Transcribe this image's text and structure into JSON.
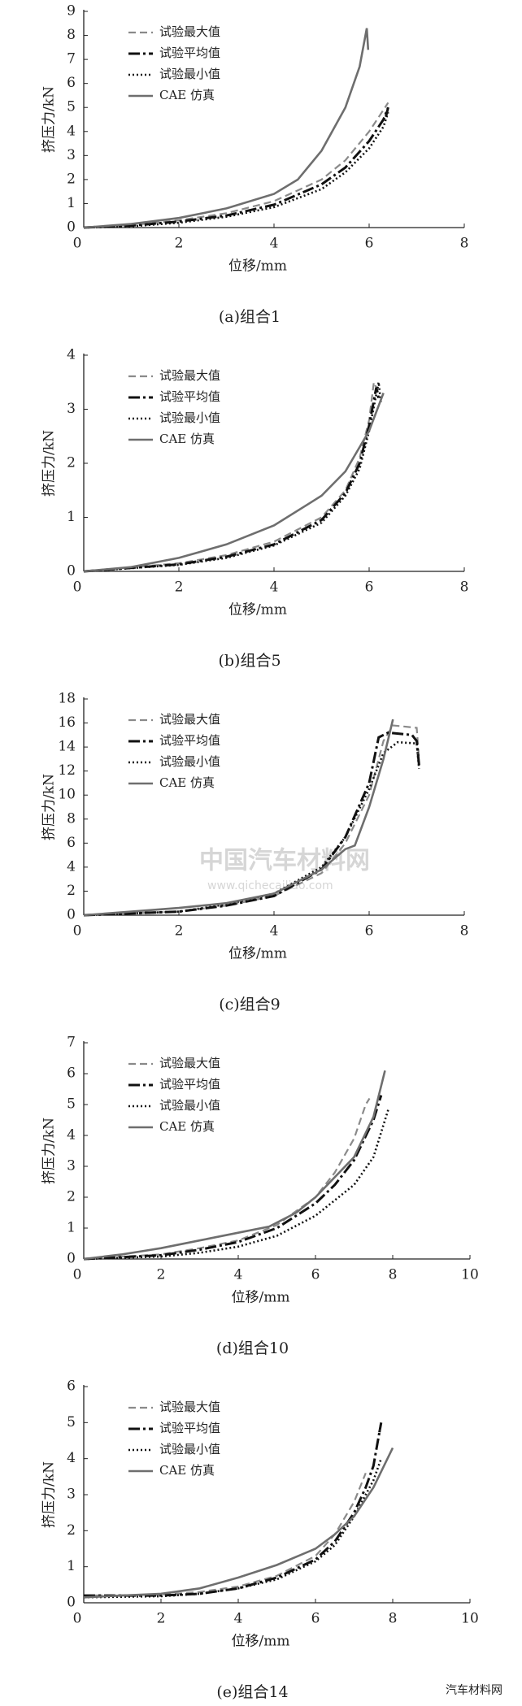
{
  "chart_data": [
    {
      "type": "line",
      "xlabel": "位移/mm",
      "ylabel": "挤压力/kN",
      "caption": "(a)组合1",
      "xlim": [
        0,
        8
      ],
      "xticks": [
        0,
        2,
        4,
        6,
        8
      ],
      "ylim": [
        0,
        9
      ],
      "yticks": [
        0,
        1,
        2,
        3,
        4,
        5,
        6,
        7,
        8,
        9
      ],
      "series": [
        {
          "name": "试验最大值",
          "color": "#8a8a8a",
          "line_style": "dashed",
          "x": [
            0,
            1,
            2,
            3,
            4,
            5,
            5.5,
            6,
            6.3,
            6.4
          ],
          "values": [
            0,
            0.1,
            0.3,
            0.6,
            1.1,
            2.0,
            2.8,
            4.0,
            4.9,
            5.2
          ]
        },
        {
          "name": "试验平均值",
          "color": "#111111",
          "line_style": "dashdot",
          "x": [
            0,
            1,
            2,
            3,
            4,
            5,
            5.5,
            6,
            6.3,
            6.4,
            6.35
          ],
          "values": [
            0,
            0.08,
            0.25,
            0.5,
            0.95,
            1.8,
            2.5,
            3.6,
            4.5,
            5.0,
            4.6
          ]
        },
        {
          "name": "试验最小值",
          "color": "#111111",
          "line_style": "dotted",
          "x": [
            0,
            1,
            2,
            3,
            4,
            5,
            5.5,
            6,
            6.3,
            6.4
          ],
          "values": [
            0,
            0.05,
            0.2,
            0.45,
            0.85,
            1.6,
            2.3,
            3.3,
            4.2,
            4.8
          ]
        },
        {
          "name": "CAE 仿真",
          "color": "#6e6e6e",
          "line_style": "solid",
          "x": [
            0,
            1,
            2,
            3,
            4,
            4.5,
            5,
            5.5,
            5.8,
            5.95,
            5.98
          ],
          "values": [
            0,
            0.15,
            0.4,
            0.8,
            1.4,
            2.0,
            3.2,
            5.0,
            6.7,
            8.3,
            7.4
          ]
        }
      ]
    },
    {
      "type": "line",
      "xlabel": "位移/mm",
      "ylabel": "挤压力/kN",
      "caption": "(b)组合5",
      "xlim": [
        0,
        8
      ],
      "xticks": [
        0,
        2,
        4,
        6,
        8
      ],
      "ylim": [
        0,
        4
      ],
      "yticks": [
        0,
        1,
        2,
        3,
        4
      ],
      "series": [
        {
          "name": "试验最大值",
          "color": "#8a8a8a",
          "line_style": "dashed",
          "x": [
            0,
            2,
            3,
            4,
            5,
            5.5,
            5.8,
            6.0,
            6.1,
            6.2
          ],
          "values": [
            0,
            0.15,
            0.3,
            0.55,
            1.0,
            1.5,
            2.1,
            2.8,
            3.5,
            3.3
          ]
        },
        {
          "name": "试验平均值",
          "color": "#111111",
          "line_style": "dashdot",
          "x": [
            0,
            2,
            3,
            4,
            5,
            5.5,
            5.8,
            6.0,
            6.15,
            6.2
          ],
          "values": [
            0,
            0.13,
            0.27,
            0.5,
            0.95,
            1.45,
            2.0,
            2.7,
            3.4,
            3.2
          ]
        },
        {
          "name": "试验最小值",
          "color": "#111111",
          "line_style": "dotted",
          "x": [
            0,
            2,
            3,
            4,
            5,
            5.5,
            5.8,
            6.0,
            6.2,
            6.25
          ],
          "values": [
            0,
            0.12,
            0.25,
            0.48,
            0.9,
            1.4,
            1.9,
            2.6,
            3.5,
            3.1
          ]
        },
        {
          "name": "CAE 仿真",
          "color": "#6e6e6e",
          "line_style": "solid",
          "x": [
            0,
            1,
            2,
            3,
            4,
            5,
            5.5,
            6,
            6.3
          ],
          "values": [
            0,
            0.08,
            0.25,
            0.5,
            0.85,
            1.4,
            1.85,
            2.6,
            3.3
          ]
        }
      ]
    },
    {
      "type": "line",
      "xlabel": "位移/mm",
      "ylabel": "挤压力/kN",
      "caption": "(c)组合9",
      "xlim": [
        0,
        8
      ],
      "xticks": [
        0,
        2,
        4,
        6,
        8
      ],
      "ylim": [
        0,
        18
      ],
      "yticks": [
        0,
        2,
        4,
        6,
        8,
        10,
        12,
        14,
        16,
        18
      ],
      "series": [
        {
          "name": "试验最大值",
          "color": "#8a8a8a",
          "line_style": "dashed",
          "x": [
            0,
            2,
            3,
            4,
            5,
            5.5,
            6,
            6.3,
            6.5,
            7,
            7.05
          ],
          "values": [
            0,
            0.3,
            0.8,
            1.6,
            3.5,
            6,
            10,
            14.5,
            15.8,
            15.6,
            13
          ]
        },
        {
          "name": "试验平均值",
          "color": "#111111",
          "line_style": "dashdot",
          "x": [
            0,
            2,
            3,
            4,
            5,
            5.5,
            6,
            6.2,
            6.4,
            6.9,
            7.0,
            7.05
          ],
          "values": [
            0,
            0.3,
            0.8,
            1.6,
            3.8,
            6.5,
            11,
            14.8,
            15.2,
            15,
            14.5,
            12.5
          ]
        },
        {
          "name": "试验最小值",
          "color": "#111111",
          "line_style": "dotted",
          "x": [
            0,
            2,
            3,
            4,
            5,
            5.5,
            6,
            6.3,
            6.6,
            7,
            7.05
          ],
          "values": [
            0,
            0.3,
            0.9,
            1.8,
            4.0,
            6.5,
            10.5,
            13.5,
            14.4,
            14.3,
            12.2
          ]
        },
        {
          "name": "CAE 仿真",
          "color": "#6e6e6e",
          "line_style": "solid",
          "x": [
            0,
            1,
            2,
            3,
            4,
            5,
            5.5,
            5.7,
            6,
            6.3,
            6.5
          ],
          "values": [
            0,
            0.3,
            0.6,
            1.0,
            1.8,
            3.8,
            5.5,
            5.8,
            9,
            13,
            16.3
          ]
        }
      ]
    },
    {
      "type": "line",
      "xlabel": "位移/mm",
      "ylabel": "挤压力/kN",
      "caption": "(d)组合10",
      "xlim": [
        0,
        10
      ],
      "xticks": [
        0,
        2,
        4,
        6,
        8,
        10
      ],
      "ylim": [
        0,
        7
      ],
      "yticks": [
        0,
        1,
        2,
        3,
        4,
        5,
        6,
        7
      ],
      "series": [
        {
          "name": "试验最大值",
          "color": "#8a8a8a",
          "line_style": "dashed",
          "x": [
            0,
            2,
            3,
            4,
            5,
            6,
            6.5,
            7,
            7.3,
            7.4
          ],
          "values": [
            0,
            0.15,
            0.35,
            0.6,
            1.1,
            2.0,
            2.8,
            3.9,
            5.0,
            5.2
          ]
        },
        {
          "name": "试验平均值",
          "color": "#111111",
          "line_style": "dashdot",
          "x": [
            0,
            2,
            3,
            4,
            5,
            6,
            6.5,
            7,
            7.5,
            7.7
          ],
          "values": [
            0,
            0.12,
            0.3,
            0.55,
            1.0,
            1.8,
            2.4,
            3.2,
            4.5,
            5.3
          ]
        },
        {
          "name": "试验最小值",
          "color": "#111111",
          "line_style": "dotted",
          "x": [
            0,
            2,
            3,
            4,
            5,
            6,
            7,
            7.5,
            7.8,
            7.9
          ],
          "values": [
            0,
            0.08,
            0.2,
            0.4,
            0.75,
            1.4,
            2.4,
            3.3,
            4.5,
            4.9
          ]
        },
        {
          "name": "CAE 仿真",
          "color": "#6e6e6e",
          "line_style": "solid",
          "x": [
            0,
            1,
            1.5,
            2,
            3,
            4,
            4.8,
            5.5,
            6,
            7,
            7.5,
            7.8
          ],
          "values": [
            0,
            0.15,
            0.25,
            0.35,
            0.6,
            0.85,
            1.05,
            1.5,
            2.0,
            3.3,
            4.6,
            6.1
          ]
        }
      ]
    },
    {
      "type": "line",
      "xlabel": "位移/mm",
      "ylabel": "挤压力/kN",
      "caption": "(e)组合14",
      "xlim": [
        0,
        10
      ],
      "xticks": [
        0,
        2,
        4,
        6,
        8,
        10
      ],
      "ylim": [
        0,
        6
      ],
      "yticks": [
        0,
        1,
        2,
        3,
        4,
        5,
        6
      ],
      "series": [
        {
          "name": "试验最大值",
          "color": "#8a8a8a",
          "line_style": "dashed",
          "x": [
            0,
            2,
            3,
            4,
            5,
            6,
            6.5,
            7,
            7.3
          ],
          "values": [
            0.2,
            0.22,
            0.3,
            0.45,
            0.75,
            1.3,
            1.9,
            2.8,
            3.6
          ]
        },
        {
          "name": "试验平均值",
          "color": "#111111",
          "line_style": "dashdot",
          "x": [
            0,
            2,
            3,
            4,
            5,
            6,
            6.5,
            7,
            7.3,
            7.5,
            7.6,
            7.7,
            7.65
          ],
          "values": [
            0.2,
            0.2,
            0.25,
            0.4,
            0.7,
            1.2,
            1.7,
            2.5,
            3.2,
            3.8,
            4.4,
            5.0,
            4.7
          ]
        },
        {
          "name": "试验最小值",
          "color": "#111111",
          "line_style": "dotted",
          "x": [
            0,
            2,
            3,
            4,
            5,
            6,
            6.5,
            7,
            7.5,
            7.7
          ],
          "values": [
            0.15,
            0.18,
            0.25,
            0.4,
            0.65,
            1.15,
            1.6,
            2.4,
            3.4,
            4.0
          ]
        },
        {
          "name": "CAE 仿真",
          "color": "#6e6e6e",
          "line_style": "solid",
          "x": [
            0,
            1,
            2,
            3,
            4,
            5,
            6,
            6.5,
            7,
            7.5,
            8
          ],
          "values": [
            0.15,
            0.2,
            0.25,
            0.4,
            0.7,
            1.05,
            1.5,
            1.9,
            2.4,
            3.2,
            4.3
          ]
        }
      ]
    }
  ],
  "watermark": {
    "name": "中国汽车材料网",
    "url": "www.qichecailiao.com"
  },
  "footer_logo": "汽车材料网"
}
